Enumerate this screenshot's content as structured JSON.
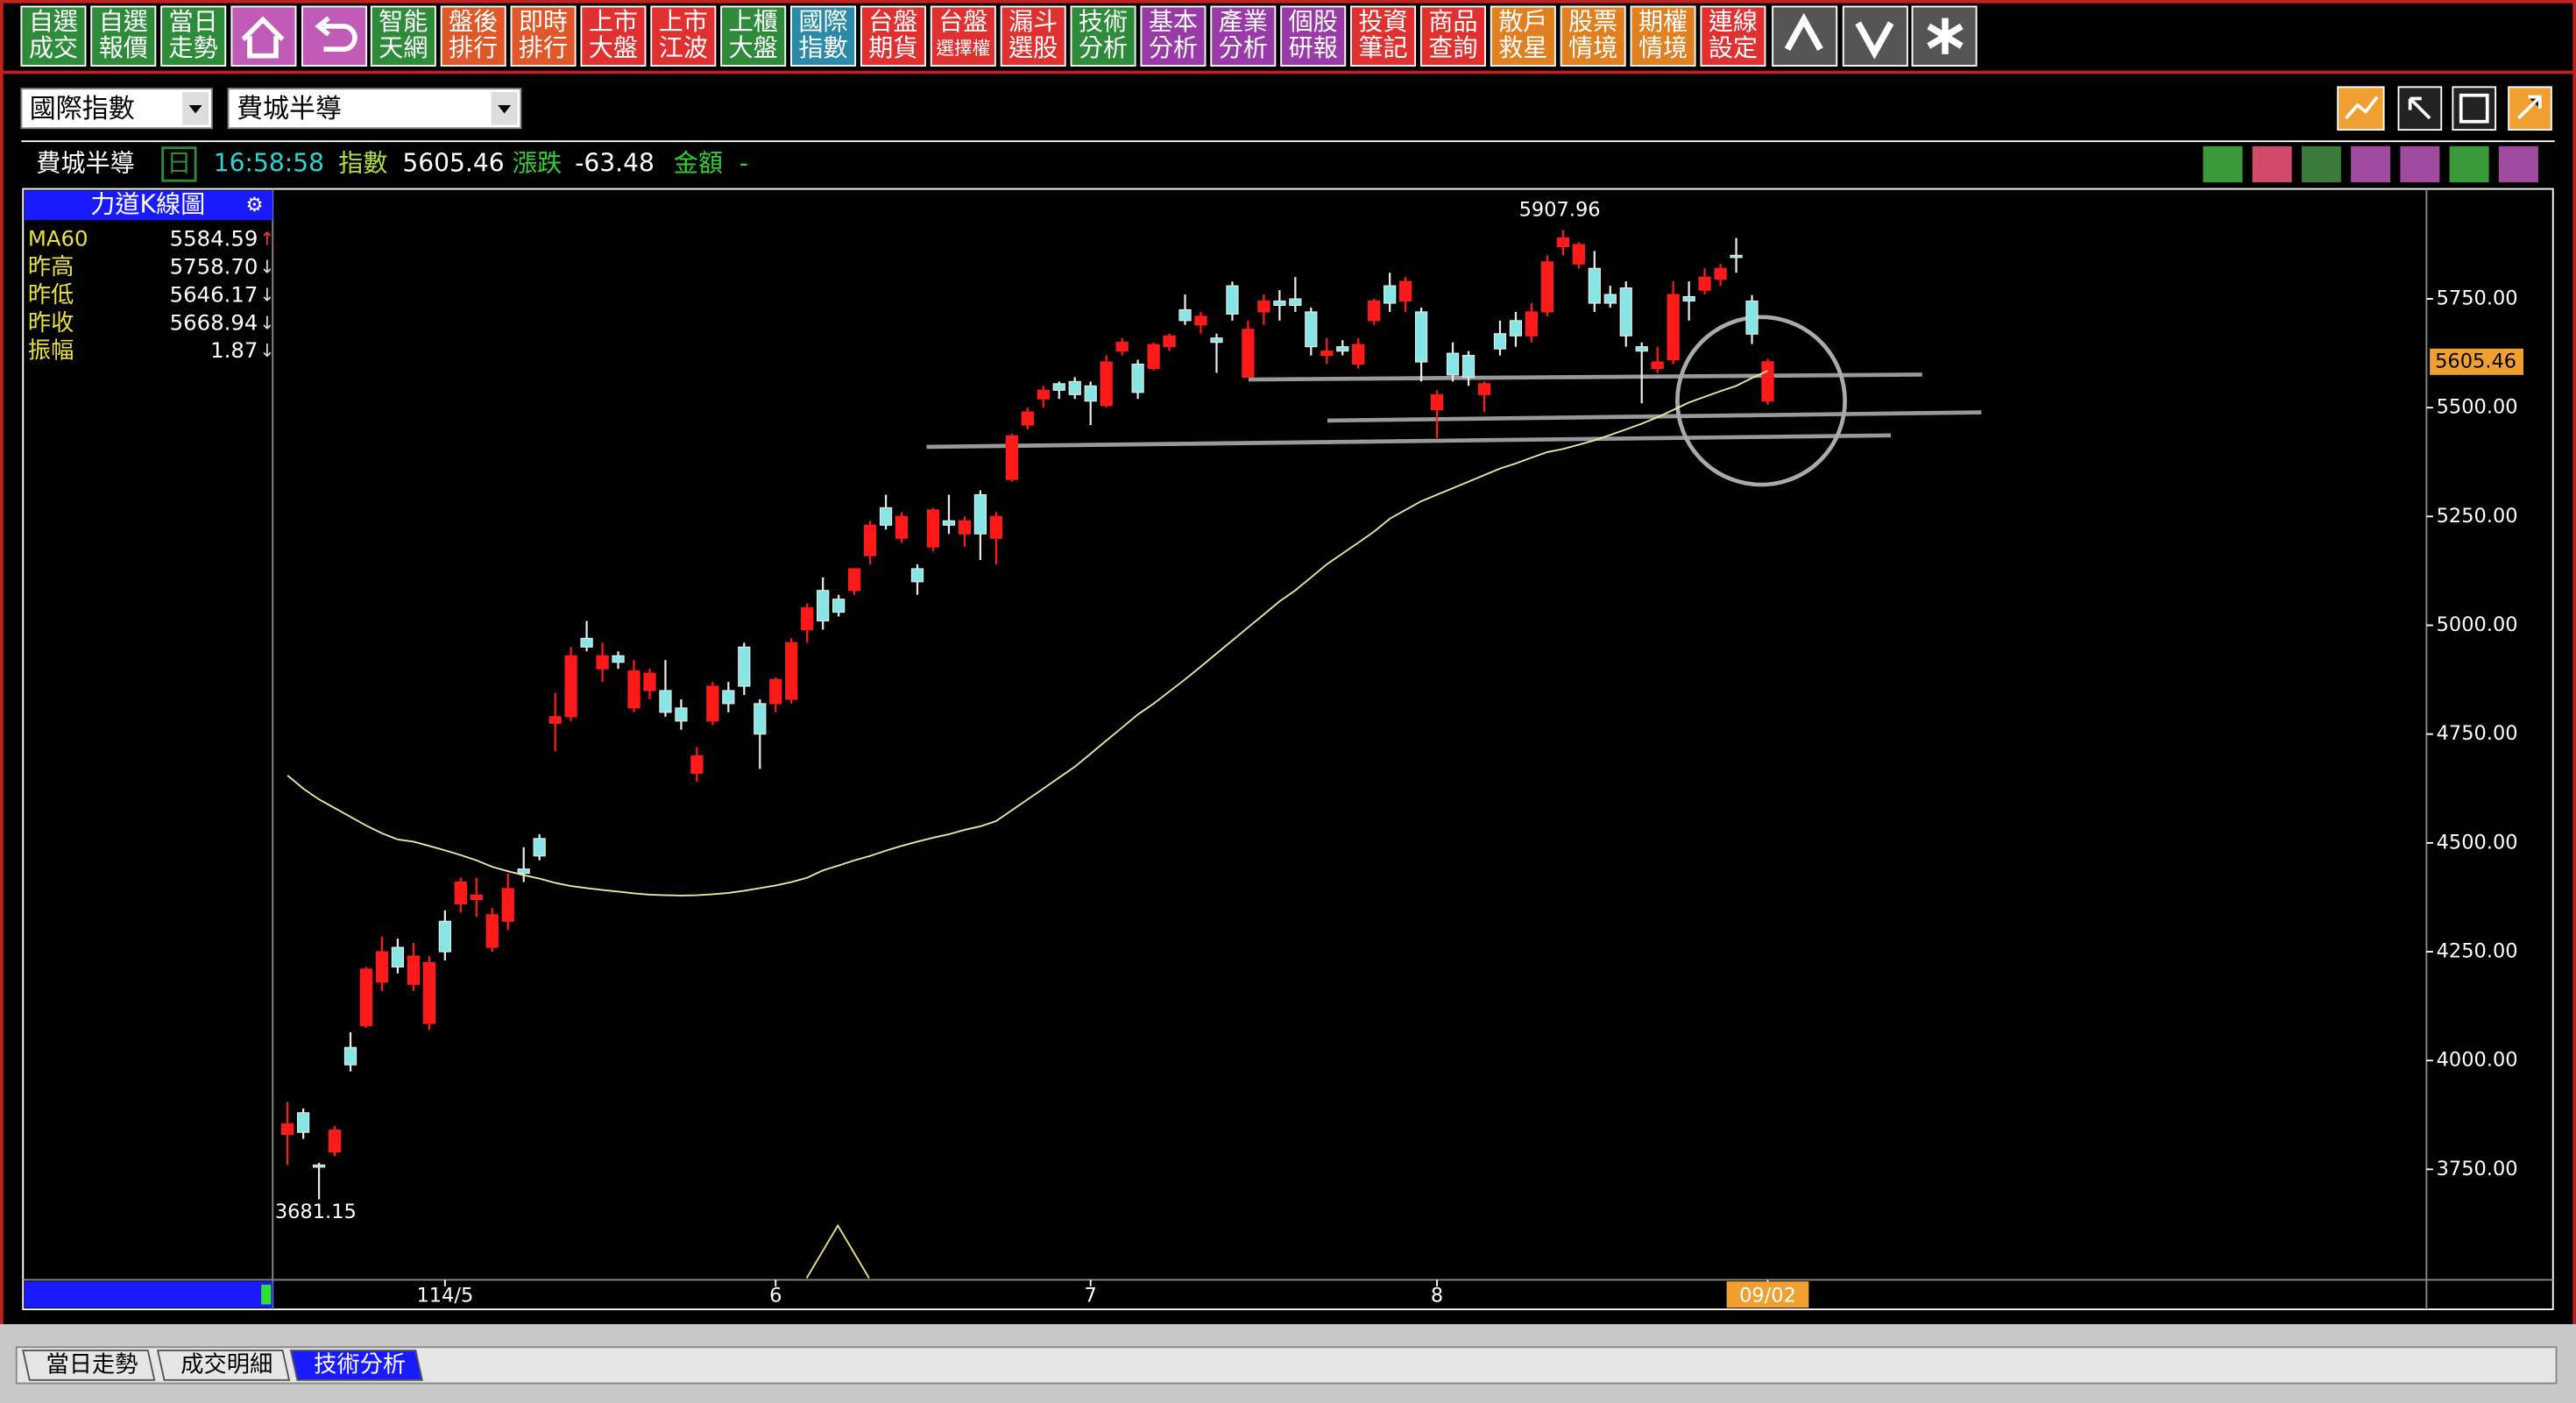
{
  "toolbar": {
    "buttons": [
      {
        "lines": [
          "自選",
          "成交"
        ],
        "color": "#2e8b3a"
      },
      {
        "lines": [
          "自選",
          "報價"
        ],
        "color": "#2e8b3a"
      },
      {
        "lines": [
          "當日",
          "走勢"
        ],
        "color": "#2e8b3a"
      },
      {
        "lines": [
          "智能",
          "天網"
        ],
        "color": "#2e8b3a"
      },
      {
        "lines": [
          "盤後",
          "排行"
        ],
        "color": "#e0582a"
      },
      {
        "lines": [
          "即時",
          "排行"
        ],
        "color": "#e0582a"
      },
      {
        "lines": [
          "上市",
          "大盤"
        ],
        "color": "#e03030"
      },
      {
        "lines": [
          "上市",
          "江波"
        ],
        "color": "#e03030"
      },
      {
        "lines": [
          "上櫃",
          "大盤"
        ],
        "color": "#2e8b3a"
      },
      {
        "lines": [
          "國際",
          "指數"
        ],
        "color": "#2a8aa8"
      },
      {
        "lines": [
          "台盤",
          "期貨"
        ],
        "color": "#e03030"
      },
      {
        "lines": [
          "台盤",
          "選擇權"
        ],
        "color": "#e03030"
      },
      {
        "lines": [
          "漏斗",
          "選股"
        ],
        "color": "#e03030"
      },
      {
        "lines": [
          "技術",
          "分析"
        ],
        "color": "#2e8b3a"
      },
      {
        "lines": [
          "基本",
          "分析"
        ],
        "color": "#9a3aa8"
      },
      {
        "lines": [
          "產業",
          "分析"
        ],
        "color": "#9a3aa8"
      },
      {
        "lines": [
          "個股",
          "研報"
        ],
        "color": "#9a3aa8"
      },
      {
        "lines": [
          "投資",
          "筆記"
        ],
        "color": "#e03030"
      },
      {
        "lines": [
          "商品",
          "查詢"
        ],
        "color": "#e03030"
      },
      {
        "lines": [
          "散戶",
          "救星"
        ],
        "color": "#e08020"
      },
      {
        "lines": [
          "股票",
          "情境"
        ],
        "color": "#e08020"
      },
      {
        "lines": [
          "期權",
          "情境"
        ],
        "color": "#e08020"
      },
      {
        "lines": [
          "連線",
          "設定"
        ],
        "color": "#e03030"
      }
    ]
  },
  "selectors": [
    "國際指數",
    "費城半導"
  ],
  "info": {
    "name": "費城半導",
    "period": "日",
    "time": "16:58:58",
    "index_label": "指數",
    "index": "5605.46",
    "change_label": "漲跌",
    "change": "-63.48",
    "amount_label": "金額",
    "amount": "-"
  },
  "panel": {
    "title": "力道K線圖",
    "ma_arrow": "↑",
    "rows": [
      {
        "label": "昨高",
        "value": "5758.70",
        "arrow": "↓"
      },
      {
        "label": "昨低",
        "value": "5646.17",
        "arrow": "↓"
      },
      {
        "label": "昨收",
        "value": "5668.94",
        "arrow": "↓"
      },
      {
        "label": "振幅",
        "value": "1.87",
        "arrow": "↓"
      }
    ]
  },
  "tabs": [
    "當日走勢",
    "成交明細",
    "技術分析"
  ],
  "chart_data": {
    "type": "candlestick",
    "up_color": "#ff1a1a",
    "down_color": "#86e6e6",
    "ylim": [
      3500,
      5995
    ],
    "yticks": [
      {
        "value": 3750,
        "label": "3750.00"
      },
      {
        "value": 4000,
        "label": "4000.00"
      },
      {
        "value": 4250,
        "label": "4250.00"
      },
      {
        "value": 4500,
        "label": "4500.00"
      },
      {
        "value": 4750,
        "label": "4750.00"
      },
      {
        "value": 5000,
        "label": "5000.00"
      },
      {
        "value": 5250,
        "label": "5250.00"
      },
      {
        "value": 5500,
        "label": "5500.00"
      },
      {
        "value": 5750,
        "label": "5750.00"
      }
    ],
    "categories": [
      null,
      null,
      null,
      null,
      null,
      null,
      null,
      null,
      null,
      null,
      "114/5",
      null,
      null,
      null,
      null,
      null,
      null,
      null,
      null,
      null,
      null,
      null,
      null,
      null,
      null,
      null,
      null,
      null,
      null,
      null,
      null,
      "6",
      null,
      null,
      null,
      null,
      null,
      null,
      null,
      null,
      null,
      null,
      null,
      null,
      null,
      null,
      null,
      null,
      null,
      null,
      null,
      "7",
      null,
      null,
      null,
      null,
      null,
      null,
      null,
      null,
      null,
      null,
      null,
      null,
      null,
      null,
      null,
      null,
      null,
      null,
      null,
      null,
      null,
      "8",
      null,
      null,
      null,
      null,
      null,
      null,
      null,
      null,
      null,
      null,
      null,
      null,
      null,
      null,
      null,
      null,
      null,
      null,
      null,
      null,
      "09/02"
    ],
    "candles": [
      [
        3830,
        3905,
        3760,
        3855
      ],
      [
        3880,
        3890,
        3820,
        3835
      ],
      [
        3760,
        3765,
        3681.15,
        3755
      ],
      [
        3790,
        3850,
        3780,
        3840
      ],
      [
        4030,
        4065,
        3975,
        3990
      ],
      [
        4080,
        4215,
        4075,
        4210
      ],
      [
        4180,
        4285,
        4160,
        4250
      ],
      [
        4260,
        4280,
        4200,
        4215
      ],
      [
        4175,
        4270,
        4160,
        4240
      ],
      [
        4085,
        4240,
        4070,
        4225
      ],
      [
        4320,
        4345,
        4230,
        4250
      ],
      [
        4360,
        4420,
        4340,
        4410
      ],
      [
        4370,
        4420,
        4330,
        4380
      ],
      [
        4260,
        4350,
        4250,
        4335
      ],
      [
        4320,
        4430,
        4300,
        4395
      ],
      [
        4440,
        4490,
        4410,
        4430
      ],
      [
        4510,
        4520,
        4460,
        4470
      ],
      [
        4775,
        4845,
        4710,
        4790
      ],
      [
        4790,
        4950,
        4780,
        4930
      ],
      [
        4970,
        5010,
        4940,
        4950
      ],
      [
        4900,
        4960,
        4870,
        4930
      ],
      [
        4930,
        4940,
        4900,
        4915
      ],
      [
        4810,
        4920,
        4800,
        4895
      ],
      [
        4850,
        4900,
        4830,
        4890
      ],
      [
        4850,
        4920,
        4790,
        4800
      ],
      [
        4810,
        4830,
        4760,
        4780
      ],
      [
        4660,
        4720,
        4640,
        4700
      ],
      [
        4780,
        4870,
        4770,
        4860
      ],
      [
        4850,
        4870,
        4800,
        4820
      ],
      [
        4950,
        4960,
        4840,
        4860
      ],
      [
        4820,
        4830,
        4670,
        4750
      ],
      [
        4820,
        4880,
        4800,
        4875
      ],
      [
        4830,
        4970,
        4820,
        4960
      ],
      [
        4990,
        5050,
        4960,
        5040
      ],
      [
        5080,
        5110,
        4990,
        5010
      ],
      [
        5060,
        5070,
        5020,
        5030
      ],
      [
        5080,
        5130,
        5070,
        5130
      ],
      [
        5160,
        5240,
        5140,
        5230
      ],
      [
        5270,
        5300,
        5220,
        5230
      ],
      [
        5200,
        5260,
        5190,
        5250
      ],
      [
        5130,
        5140,
        5070,
        5100
      ],
      [
        5180,
        5270,
        5170,
        5265
      ],
      [
        5240,
        5300,
        5210,
        5230
      ],
      [
        5210,
        5250,
        5180,
        5240
      ],
      [
        5300,
        5310,
        5150,
        5210
      ],
      [
        5200,
        5260,
        5140,
        5250
      ],
      [
        5335,
        5440,
        5330,
        5435
      ],
      [
        5460,
        5500,
        5450,
        5490
      ],
      [
        5520,
        5550,
        5500,
        5540
      ],
      [
        5555,
        5560,
        5520,
        5540
      ],
      [
        5560,
        5570,
        5520,
        5530
      ],
      [
        5550,
        5560,
        5460,
        5515
      ],
      [
        5505,
        5620,
        5500,
        5605
      ],
      [
        5630,
        5660,
        5620,
        5650
      ],
      [
        5600,
        5610,
        5520,
        5535
      ],
      [
        5590,
        5650,
        5585,
        5645
      ],
      [
        5640,
        5670,
        5630,
        5665
      ],
      [
        5725,
        5760,
        5690,
        5700
      ],
      [
        5690,
        5720,
        5670,
        5710
      ],
      [
        5660,
        5670,
        5580,
        5650
      ],
      [
        5780,
        5790,
        5700,
        5715
      ],
      [
        5570,
        5700,
        5570,
        5680
      ],
      [
        5720,
        5760,
        5690,
        5745
      ],
      [
        5745,
        5770,
        5700,
        5735
      ],
      [
        5750,
        5800,
        5720,
        5735
      ],
      [
        5720,
        5730,
        5620,
        5640
      ],
      [
        5620,
        5660,
        5600,
        5630
      ],
      [
        5640,
        5655,
        5620,
        5630
      ],
      [
        5600,
        5660,
        5590,
        5645
      ],
      [
        5700,
        5750,
        5690,
        5745
      ],
      [
        5780,
        5810,
        5720,
        5740
      ],
      [
        5745,
        5800,
        5720,
        5790
      ],
      [
        5720,
        5730,
        5560,
        5605
      ],
      [
        5495,
        5540,
        5430,
        5530
      ],
      [
        5625,
        5650,
        5560,
        5575
      ],
      [
        5620,
        5630,
        5550,
        5570
      ],
      [
        5530,
        5560,
        5490,
        5555
      ],
      [
        5670,
        5700,
        5620,
        5635
      ],
      [
        5700,
        5720,
        5640,
        5665
      ],
      [
        5665,
        5740,
        5650,
        5720
      ],
      [
        5720,
        5850,
        5710,
        5835
      ],
      [
        5870,
        5907.96,
        5850,
        5890
      ],
      [
        5830,
        5880,
        5820,
        5875
      ],
      [
        5820,
        5860,
        5720,
        5740
      ],
      [
        5760,
        5780,
        5730,
        5740
      ],
      [
        5775,
        5790,
        5640,
        5665
      ],
      [
        5640,
        5650,
        5510,
        5630
      ],
      [
        5590,
        5640,
        5580,
        5605
      ],
      [
        5610,
        5790,
        5600,
        5760
      ],
      [
        5755,
        5790,
        5700,
        5745
      ],
      [
        5770,
        5820,
        5760,
        5800
      ],
      [
        5795,
        5830,
        5780,
        5820
      ],
      [
        5850,
        5890,
        5810,
        5845
      ],
      [
        5745,
        5758.7,
        5646.17,
        5668.94
      ],
      [
        5515,
        5612,
        5506,
        5605.46
      ]
    ],
    "series": [
      {
        "name": "MA60",
        "color": "#e8e8a0",
        "values": [
          4655,
          4625,
          4600,
          4580,
          4560,
          4540,
          4522,
          4508,
          4503,
          4493,
          4483,
          4472,
          4460,
          4445,
          4435,
          4426,
          4418,
          4408,
          4401,
          4396,
          4392,
          4388,
          4384,
          4381,
          4380,
          4379,
          4380,
          4382,
          4385,
          4390,
          4396,
          4402,
          4410,
          4420,
          4437,
          4448,
          4460,
          4470,
          4482,
          4493,
          4503,
          4512,
          4520,
          4530,
          4538,
          4550,
          4575,
          4600,
          4625,
          4650,
          4675,
          4705,
          4735,
          4765,
          4795,
          4820,
          4848,
          4876,
          4905,
          4935,
          4965,
          4995,
          5025,
          5055,
          5080,
          5110,
          5140,
          5165,
          5190,
          5215,
          5245,
          5265,
          5285,
          5300,
          5315,
          5330,
          5345,
          5360,
          5372,
          5385,
          5398,
          5405,
          5415,
          5425,
          5437,
          5450,
          5463,
          5478,
          5495,
          5512,
          5525,
          5538,
          5550,
          5568,
          5584.59
        ]
      }
    ]
  }
}
